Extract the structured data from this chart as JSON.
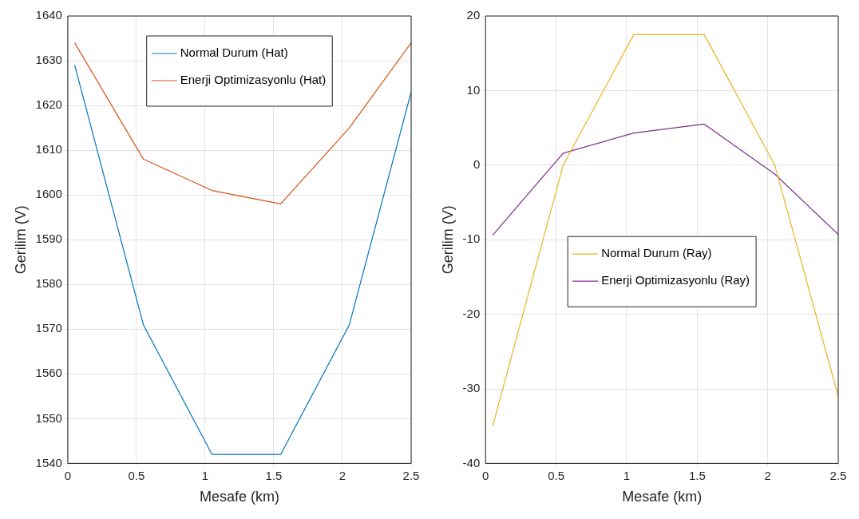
{
  "chart_data": [
    {
      "type": "line",
      "xlabel": "Mesafe (km)",
      "ylabel": "Gerilim (V)",
      "xlim": [
        0,
        2.5
      ],
      "ylim": [
        1540,
        1640
      ],
      "xticks": [
        0,
        0.5,
        1,
        1.5,
        2,
        2.5
      ],
      "yticks": [
        1540,
        1550,
        1560,
        1570,
        1580,
        1590,
        1600,
        1610,
        1620,
        1630,
        1640
      ],
      "grid": true,
      "legend": "top",
      "marker": "none",
      "series": [
        {
          "name": "Normal Durum (Hat)",
          "color": "#0072bd",
          "x": [
            0.05,
            0.55,
            1.05,
            1.55,
            2.05,
            2.5
          ],
          "values": [
            1629,
            1571,
            1542,
            1542,
            1571,
            1623
          ]
        },
        {
          "name": "Enerji Optimizasyonlu (Hat)",
          "color": "#d95319",
          "x": [
            0.05,
            0.55,
            1.05,
            1.55,
            2.05,
            2.5
          ],
          "values": [
            1634,
            1608,
            1601,
            1598,
            1615,
            1634
          ]
        }
      ]
    },
    {
      "type": "line",
      "xlabel": "Mesafe (km)",
      "ylabel": "Gerilim (V)",
      "xlim": [
        0,
        2.5
      ],
      "ylim": [
        -40,
        20
      ],
      "xticks": [
        0,
        0.5,
        1,
        1.5,
        2,
        2.5
      ],
      "yticks": [
        -40,
        -30,
        -20,
        -10,
        0,
        10,
        20
      ],
      "grid": true,
      "legend": "center",
      "marker": "none",
      "series": [
        {
          "name": "Normal Durum (Ray)",
          "color": "#edb120",
          "x": [
            0.05,
            0.55,
            1.05,
            1.55,
            2.05,
            2.5
          ],
          "values": [
            -35,
            0,
            17.5,
            17.5,
            0,
            -31
          ]
        },
        {
          "name": "Enerji Optimizasyonlu (Ray)",
          "color": "#7e2f8e",
          "x": [
            0.05,
            0.55,
            1.05,
            1.55,
            2.05,
            2.5
          ],
          "values": [
            -9.4,
            1.6,
            4.3,
            5.5,
            -1.2,
            -9.3
          ]
        }
      ]
    }
  ]
}
